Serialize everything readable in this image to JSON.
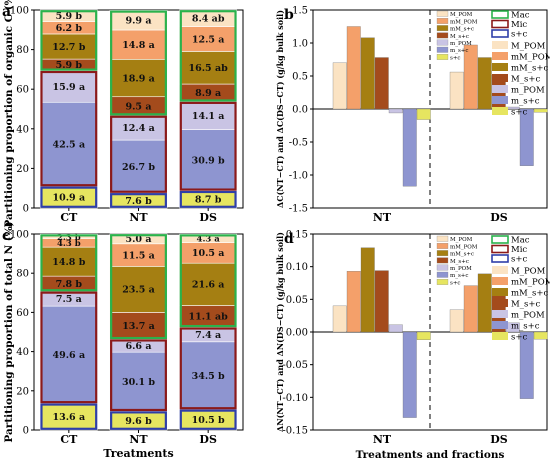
{
  "panels": {
    "a": {
      "letter": "a",
      "ylabel": "Partitioning proportion of organic C (%)"
    },
    "b": {
      "letter": "b",
      "ylabel": "ΔC(NT−CT) and ΔC(DS−CT) (g/kg bulk soil)"
    },
    "c": {
      "letter": "c",
      "ylabel": "Partitioning proportion of total N (%)",
      "xlabel": "Treatments"
    },
    "d": {
      "letter": "d",
      "ylabel": "ΔN(NT−CT) and ΔN(DS−CT) (g/kg bulk soil)",
      "xlabel": "Treatments and fractions"
    }
  },
  "legend": {
    "border_entries": [
      {
        "name": "Mac",
        "color": "#2bb24c"
      },
      {
        "name": "Mic",
        "color": "#8b1a1a"
      },
      {
        "name": "s+c",
        "color": "#2f3fa8"
      }
    ],
    "fraction_entries": [
      {
        "name": "M_POM",
        "color": "#fbe3c3"
      },
      {
        "name": "mM_POM",
        "color": "#f4a06a"
      },
      {
        "name": "mM_s+c",
        "color": "#a57f12"
      },
      {
        "name": "M_s+c",
        "color": "#a44b1c"
      },
      {
        "name": "m_POM",
        "color": "#c9c4e4"
      },
      {
        "name": "m_s+c",
        "color": "#8e95d0"
      },
      {
        "name": "s+c",
        "color": "#e6e560"
      }
    ]
  },
  "chart_data": [
    {
      "panel": "a",
      "type": "bar",
      "stacked": true,
      "title": "",
      "ylabel": "Partitioning proportion of organic C (%)",
      "categories": [
        "CT",
        "NT",
        "DS"
      ],
      "ylim": [
        0,
        100
      ],
      "yticks": [
        0,
        20,
        40,
        60,
        80,
        100
      ],
      "series": [
        {
          "name": "s+c",
          "color": "#e6e560",
          "values": [
            10.9,
            7.6,
            8.7
          ],
          "labels": [
            "10.9 a",
            "7.6 b",
            "8.7 b"
          ]
        },
        {
          "name": "m_s+c",
          "color": "#8e95d0",
          "values": [
            42.5,
            26.7,
            30.9
          ],
          "labels": [
            "42.5 a",
            "26.7 b",
            "30.9 b"
          ]
        },
        {
          "name": "m_POM",
          "color": "#c9c4e4",
          "values": [
            15.9,
            12.4,
            14.1
          ],
          "labels": [
            "15.9 a",
            "12.4 a",
            "14.1 a"
          ]
        },
        {
          "name": "M_s+c",
          "color": "#a44b1c",
          "values": [
            5.9,
            9.5,
            8.9
          ],
          "labels": [
            "5.9 b",
            "9.5 a",
            "8.9 a"
          ]
        },
        {
          "name": "mM_s+c",
          "color": "#a57f12",
          "values": [
            12.7,
            18.9,
            16.5
          ],
          "labels": [
            "12.7 b",
            "18.9 a",
            "16.5 ab"
          ]
        },
        {
          "name": "mM_POM",
          "color": "#f4a06a",
          "values": [
            6.2,
            14.8,
            12.5
          ],
          "labels": [
            "6.2 b",
            "14.8 a",
            "12.5 a"
          ]
        },
        {
          "name": "M_POM",
          "color": "#fbe3c3",
          "values": [
            5.9,
            9.9,
            8.4
          ],
          "labels": [
            "5.9 b",
            "9.9 a",
            "8.4 ab"
          ]
        }
      ]
    },
    {
      "panel": "b",
      "type": "bar",
      "title": "",
      "ylabel": "ΔC(NT−CT) and ΔC(DS−CT) (g/kg bulk soil)",
      "categories": [
        "NT",
        "DS"
      ],
      "ylim": [
        -1.5,
        1.5
      ],
      "yticks": [
        -1.5,
        -1.0,
        -0.5,
        0.0,
        0.5,
        1.0,
        1.5
      ],
      "series": [
        {
          "name": "M_POM",
          "color": "#fbe3c3",
          "values": [
            0.7,
            0.56
          ]
        },
        {
          "name": "mM_POM",
          "color": "#f4a06a",
          "values": [
            1.25,
            0.97
          ]
        },
        {
          "name": "mM_s+c",
          "color": "#a57f12",
          "values": [
            1.08,
            0.78
          ]
        },
        {
          "name": "M_s+c",
          "color": "#a44b1c",
          "values": [
            0.78,
            0.51
          ]
        },
        {
          "name": "m_POM",
          "color": "#c9c4e4",
          "values": [
            -0.06,
            0.03
          ]
        },
        {
          "name": "m_s+c",
          "color": "#8e95d0",
          "values": [
            -1.17,
            -0.86
          ]
        },
        {
          "name": "s+c",
          "color": "#e6e560",
          "values": [
            -0.16,
            -0.05
          ]
        }
      ]
    },
    {
      "panel": "c",
      "type": "bar",
      "stacked": true,
      "title": "",
      "ylabel": "Partitioning proportion of total N (%)",
      "xlabel": "Treatments",
      "categories": [
        "CT",
        "NT",
        "DS"
      ],
      "ylim": [
        0,
        100
      ],
      "yticks": [
        0,
        20,
        40,
        60,
        80,
        100
      ],
      "series": [
        {
          "name": "s+c",
          "color": "#e6e560",
          "values": [
            13.6,
            9.6,
            10.5
          ],
          "labels": [
            "13.6 a",
            "9.6 b",
            "10.5 b"
          ]
        },
        {
          "name": "m_s+c",
          "color": "#8e95d0",
          "values": [
            49.6,
            30.1,
            34.5
          ],
          "labels": [
            "49.6 a",
            "30.1 b",
            "34.5 b"
          ]
        },
        {
          "name": "m_POM",
          "color": "#c9c4e4",
          "values": [
            7.5,
            6.6,
            7.4
          ],
          "labels": [
            "7.5 a",
            "6.6 a",
            "7.4 a"
          ]
        },
        {
          "name": "M_s+c",
          "color": "#a44b1c",
          "values": [
            7.8,
            13.7,
            11.1
          ],
          "labels": [
            "7.8 b",
            "13.7 a",
            "11.1 ab"
          ]
        },
        {
          "name": "mM_s+c",
          "color": "#a57f12",
          "values": [
            14.8,
            23.5,
            21.6
          ],
          "labels": [
            "14.8 b",
            "23.5 a",
            "21.6 a"
          ]
        },
        {
          "name": "mM_POM",
          "color": "#f4a06a",
          "values": [
            4.3,
            11.5,
            10.5
          ],
          "labels": [
            "4.3 b",
            "11.5 a",
            "10.5 a"
          ]
        },
        {
          "name": "M_POM",
          "color": "#fbe3c3",
          "values": [
            2.3,
            5.0,
            4.3
          ],
          "labels": [
            "2.3 b",
            "5.0 a",
            "4.3 a"
          ]
        }
      ]
    },
    {
      "panel": "d",
      "type": "bar",
      "title": "",
      "ylabel": "ΔN(NT−CT) and ΔN(DS−CT) (g/kg bulk soil)",
      "xlabel": "Treatments and fractions",
      "categories": [
        "NT",
        "DS"
      ],
      "ylim": [
        -0.15,
        0.15
      ],
      "yticks": [
        -0.15,
        -0.1,
        -0.05,
        0.0,
        0.05,
        0.1,
        0.15
      ],
      "series": [
        {
          "name": "M_POM",
          "color": "#fbe3c3",
          "values": [
            0.04,
            0.034
          ]
        },
        {
          "name": "mM_POM",
          "color": "#f4a06a",
          "values": [
            0.093,
            0.071
          ]
        },
        {
          "name": "mM_s+c",
          "color": "#a57f12",
          "values": [
            0.129,
            0.089
          ]
        },
        {
          "name": "M_s+c",
          "color": "#a44b1c",
          "values": [
            0.094,
            0.066
          ]
        },
        {
          "name": "m_POM",
          "color": "#c9c4e4",
          "values": [
            0.011,
            0.014
          ]
        },
        {
          "name": "m_s+c",
          "color": "#8e95d0",
          "values": [
            -0.131,
            -0.102
          ]
        },
        {
          "name": "s+c",
          "color": "#e6e560",
          "values": [
            -0.012,
            -0.011
          ]
        }
      ]
    }
  ]
}
